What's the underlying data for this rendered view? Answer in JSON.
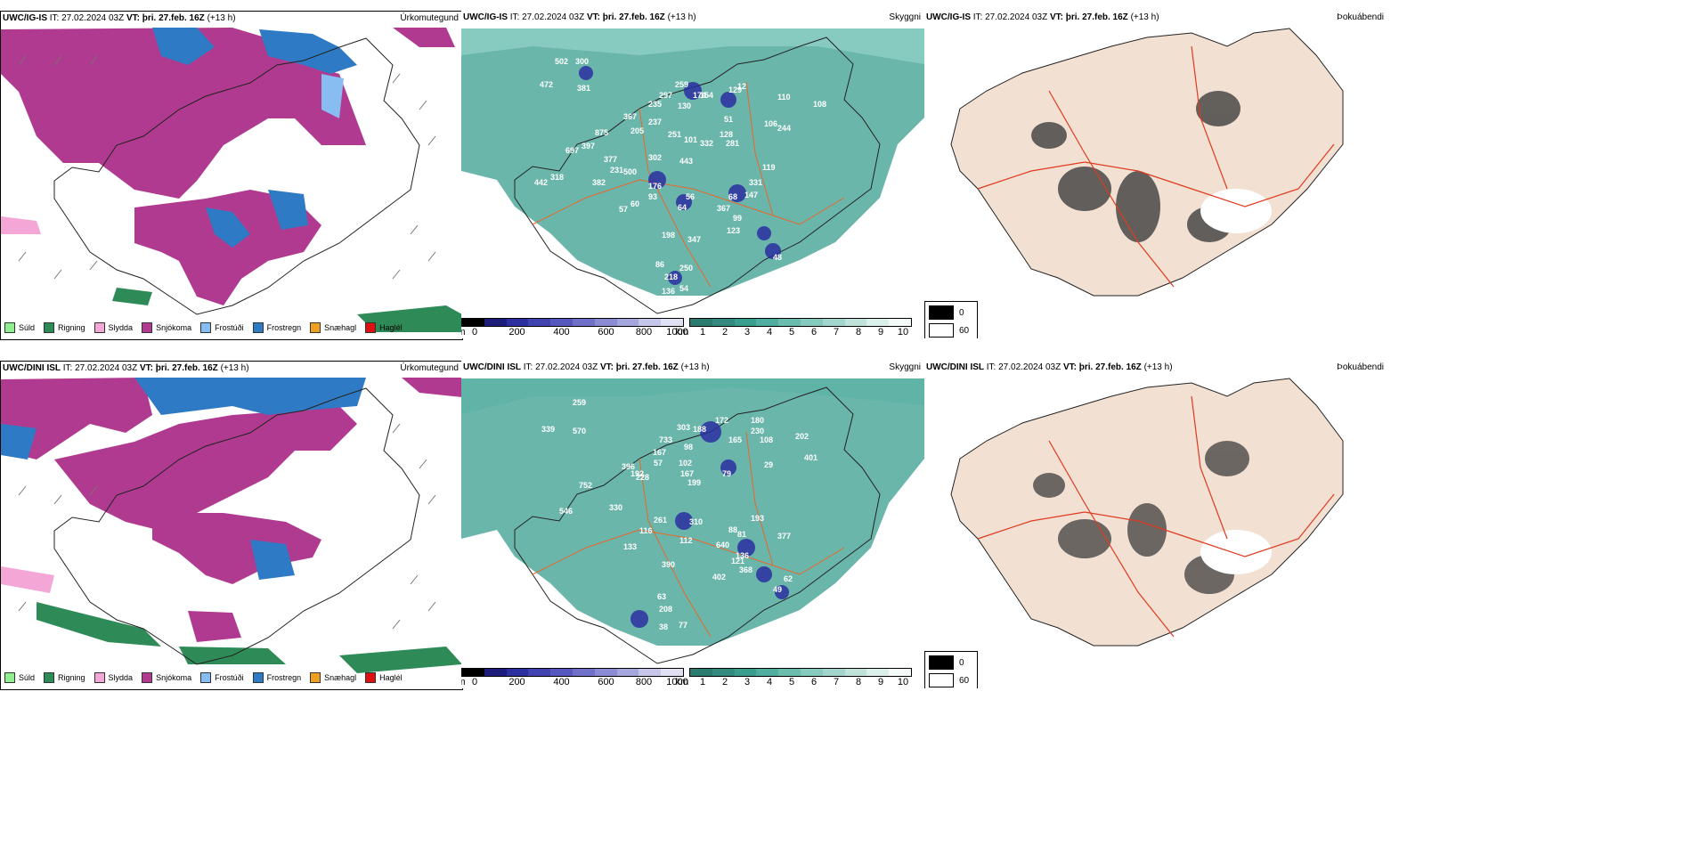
{
  "rows": [
    {
      "precip": {
        "model": "UWC/IG-IS",
        "it": "IT: 27.02.2024 03Z",
        "vt_label": "VT:",
        "vt": "þri. 27.feb. 16Z",
        "lead": "(+13 h)",
        "var": "Úrkomutegund"
      },
      "vis": {
        "model": "UWC/IG-IS",
        "it": "IT: 27.02.2024 03Z",
        "vt_label": "VT:",
        "vt": "þri. 27.feb. 16Z",
        "lead": "(+13 h)",
        "var": "Skyggni"
      },
      "fog": {
        "model": "UWC/IG-IS",
        "it": "IT: 27.02.2024 03Z",
        "vt_label": "VT:",
        "vt": "þri. 27.feb. 16Z",
        "lead": "(+13 h)",
        "var": "Þokuábendi"
      },
      "labels": [
        "502",
        "300",
        "472",
        "381",
        "875",
        "397",
        "697",
        "377",
        "231",
        "500",
        "318",
        "442",
        "382",
        "367",
        "237",
        "205",
        "251",
        "297",
        "235",
        "259",
        "130",
        "174",
        "154",
        "101",
        "332",
        "129",
        "110",
        "244",
        "106",
        "108",
        "443",
        "302",
        "176",
        "93",
        "60",
        "57",
        "56",
        "64",
        "68",
        "147",
        "367",
        "99",
        "123",
        "331",
        "48",
        "198",
        "347",
        "86",
        "250",
        "218",
        "136",
        "54",
        "51",
        "128",
        "281",
        "119",
        "12"
      ]
    },
    {
      "precip": {
        "model": "UWC/DINI ISL",
        "it": "IT: 27.02.2024 03Z",
        "vt_label": "VT:",
        "vt": "þri. 27.feb. 16Z",
        "lead": "(+13 h)",
        "var": "Úrkomutegund"
      },
      "vis": {
        "model": "UWC/DINI ISL",
        "it": "IT: 27.02.2024 03Z",
        "vt_label": "VT:",
        "vt": "þri. 27.feb. 16Z",
        "lead": "(+13 h)",
        "var": "Skyggni"
      },
      "fog": {
        "model": "UWC/DINI ISL",
        "it": "IT: 27.02.2024 03Z",
        "vt_label": "VT:",
        "vt": "þri. 27.feb. 16Z",
        "lead": "(+13 h)",
        "var": "Þokuábendi"
      },
      "labels": [
        "259",
        "339",
        "570",
        "733",
        "303",
        "188",
        "172",
        "180",
        "230",
        "202",
        "401",
        "167",
        "98",
        "165",
        "108",
        "396",
        "228",
        "102",
        "79",
        "752",
        "199",
        "546",
        "330",
        "261",
        "310",
        "193",
        "116",
        "133",
        "88",
        "81",
        "640",
        "377",
        "112",
        "136",
        "368",
        "121",
        "402",
        "390",
        "63",
        "208",
        "38",
        "77",
        "49",
        "62",
        "192",
        "167",
        "29",
        "57"
      ]
    }
  ],
  "precip_legend": [
    {
      "label": "Súld",
      "color": "#90ee90"
    },
    {
      "label": "Rigning",
      "color": "#2e8b57"
    },
    {
      "label": "Slydda",
      "color": "#f4a6d7"
    },
    {
      "label": "Snjókoma",
      "color": "#b03a8f"
    },
    {
      "label": "Frostúði",
      "color": "#87bdf0"
    },
    {
      "label": "Frostregn",
      "color": "#2f7ac4"
    },
    {
      "label": "Snæhagl",
      "color": "#f0a020"
    },
    {
      "label": "Haglél",
      "color": "#e01010"
    }
  ],
  "scale_m": {
    "unit": "m",
    "ticks": [
      "0",
      "200",
      "400",
      "600",
      "800",
      "1000"
    ]
  },
  "scale_km": {
    "unit": "km",
    "ticks": [
      "1",
      "2",
      "3",
      "4",
      "5",
      "6",
      "7",
      "8",
      "9",
      "10"
    ]
  },
  "fog_legend": [
    {
      "label": "0",
      "color": "#000000"
    },
    {
      "label": "60",
      "color": "#ffffff"
    }
  ],
  "colors": {
    "teal": "#3a9e8f",
    "snow": "#b03a8f",
    "freeze": "#2f7ac4",
    "land": "#f2e1d3",
    "road": "#e8662a"
  }
}
